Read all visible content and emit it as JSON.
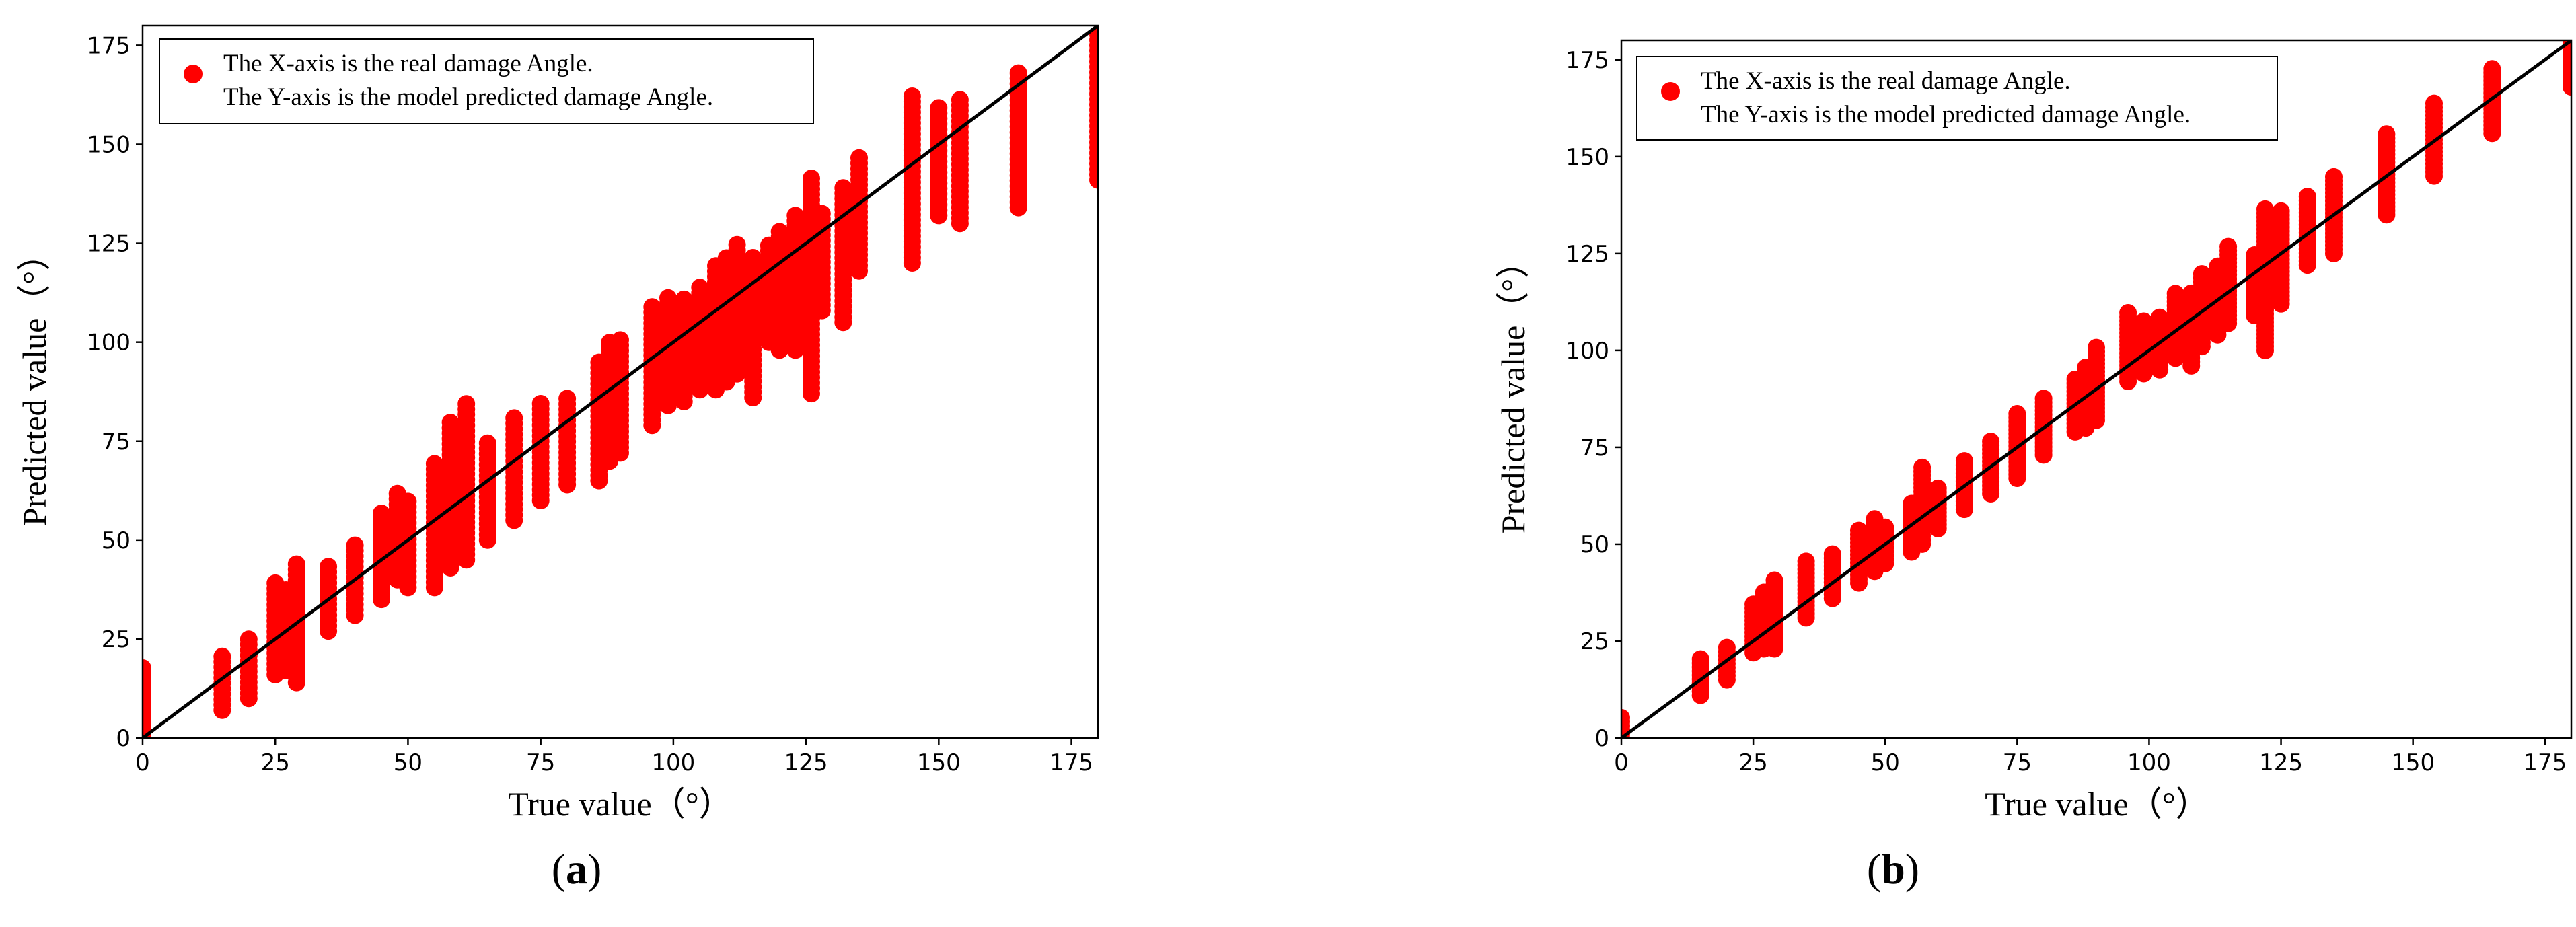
{
  "captions": [
    {
      "open": "(",
      "letter": "a",
      "close": ")"
    },
    {
      "open": "(",
      "letter": "b",
      "close": ")"
    }
  ],
  "colors": {
    "points": "#ff0000",
    "reference_line": "#000000",
    "axes": "#000000"
  },
  "chart_data": [
    {
      "type": "scatter",
      "title": "",
      "xlabel": "True value（°）",
      "ylabel": "Predicted value（°）",
      "xlim": [
        0,
        180
      ],
      "ylim": [
        0,
        180
      ],
      "xticks": [
        0,
        25,
        50,
        75,
        100,
        125,
        150,
        175
      ],
      "yticks": [
        0,
        25,
        50,
        75,
        100,
        125,
        150,
        175
      ],
      "grid": false,
      "legend": {
        "placement": "top-left",
        "marker_color": "#ff0000",
        "lines": [
          "The X-axis is the real damage Angle.",
          "The Y-axis is the model predicted damage Angle."
        ]
      },
      "reference_line": {
        "x": [
          0,
          180
        ],
        "y": [
          0,
          180
        ]
      },
      "series": [
        {
          "point_groups": [
            {
              "x": 0,
              "ymin": 0,
              "ymax": 18
            },
            {
              "x": 15,
              "ymin": 7,
              "ymax": 21
            },
            {
              "x": 20,
              "ymin": 10,
              "ymax": 25
            },
            {
              "x": 25,
              "ymin": 16,
              "ymax": 40
            },
            {
              "x": 27,
              "ymin": 17,
              "ymax": 38
            },
            {
              "x": 29,
              "ymin": 14,
              "ymax": 45
            },
            {
              "x": 35,
              "ymin": 27,
              "ymax": 44
            },
            {
              "x": 40,
              "ymin": 31,
              "ymax": 50
            },
            {
              "x": 45,
              "ymin": 35,
              "ymax": 57
            },
            {
              "x": 48,
              "ymin": 40,
              "ymax": 62
            },
            {
              "x": 50,
              "ymin": 38,
              "ymax": 60
            },
            {
              "x": 55,
              "ymin": 38,
              "ymax": 70
            },
            {
              "x": 58,
              "ymin": 43,
              "ymax": 80
            },
            {
              "x": 61,
              "ymin": 45,
              "ymax": 85
            },
            {
              "x": 65,
              "ymin": 50,
              "ymax": 75
            },
            {
              "x": 70,
              "ymin": 55,
              "ymax": 82
            },
            {
              "x": 75,
              "ymin": 60,
              "ymax": 85
            },
            {
              "x": 80,
              "ymin": 64,
              "ymax": 87
            },
            {
              "x": 86,
              "ymin": 65,
              "ymax": 95
            },
            {
              "x": 88,
              "ymin": 70,
              "ymax": 100
            },
            {
              "x": 90,
              "ymin": 72,
              "ymax": 101
            },
            {
              "x": 96,
              "ymin": 79,
              "ymax": 110
            },
            {
              "x": 99,
              "ymin": 84,
              "ymax": 112
            },
            {
              "x": 102,
              "ymin": 85,
              "ymax": 112
            },
            {
              "x": 105,
              "ymin": 88,
              "ymax": 115
            },
            {
              "x": 108,
              "ymin": 88,
              "ymax": 120
            },
            {
              "x": 110,
              "ymin": 90,
              "ymax": 122
            },
            {
              "x": 112,
              "ymin": 92,
              "ymax": 125
            },
            {
              "x": 115,
              "ymin": 86,
              "ymax": 122
            },
            {
              "x": 118,
              "ymin": 100,
              "ymax": 125
            },
            {
              "x": 120,
              "ymin": 98,
              "ymax": 128
            },
            {
              "x": 123,
              "ymin": 98,
              "ymax": 132
            },
            {
              "x": 126,
              "ymin": 87,
              "ymax": 142
            },
            {
              "x": 128,
              "ymin": 108,
              "ymax": 133
            },
            {
              "x": 132,
              "ymin": 105,
              "ymax": 140
            },
            {
              "x": 135,
              "ymin": 118,
              "ymax": 147
            },
            {
              "x": 145,
              "ymin": 120,
              "ymax": 163
            },
            {
              "x": 150,
              "ymin": 132,
              "ymax": 160
            },
            {
              "x": 154,
              "ymin": 130,
              "ymax": 162
            },
            {
              "x": 165,
              "ymin": 134,
              "ymax": 169
            },
            {
              "x": 180,
              "ymin": 141,
              "ymax": 178
            }
          ]
        }
      ]
    },
    {
      "type": "scatter",
      "title": "",
      "xlabel": "True value（°）",
      "ylabel": "Predicted value（°）",
      "xlim": [
        0,
        180
      ],
      "ylim": [
        0,
        180
      ],
      "xticks": [
        0,
        25,
        50,
        75,
        100,
        125,
        150,
        175
      ],
      "yticks": [
        0,
        25,
        50,
        75,
        100,
        125,
        150,
        175
      ],
      "grid": false,
      "legend": {
        "placement": "top-left",
        "marker_color": "#ff0000",
        "lines": [
          "The X-axis is the real damage Angle.",
          "The Y-axis is the model predicted damage Angle."
        ]
      },
      "reference_line": {
        "x": [
          0,
          180
        ],
        "y": [
          0,
          180
        ]
      },
      "series": [
        {
          "point_groups": [
            {
              "x": 0,
              "ymin": 0,
              "ymax": 6
            },
            {
              "x": 15,
              "ymin": 11,
              "ymax": 21
            },
            {
              "x": 20,
              "ymin": 15,
              "ymax": 24
            },
            {
              "x": 25,
              "ymin": 22,
              "ymax": 35
            },
            {
              "x": 27,
              "ymin": 23,
              "ymax": 38
            },
            {
              "x": 29,
              "ymin": 23,
              "ymax": 41
            },
            {
              "x": 35,
              "ymin": 31,
              "ymax": 46
            },
            {
              "x": 40,
              "ymin": 36,
              "ymax": 48
            },
            {
              "x": 45,
              "ymin": 40,
              "ymax": 54
            },
            {
              "x": 48,
              "ymin": 43,
              "ymax": 57
            },
            {
              "x": 50,
              "ymin": 45,
              "ymax": 55
            },
            {
              "x": 55,
              "ymin": 48,
              "ymax": 61
            },
            {
              "x": 57,
              "ymin": 50,
              "ymax": 70
            },
            {
              "x": 60,
              "ymin": 54,
              "ymax": 65
            },
            {
              "x": 65,
              "ymin": 59,
              "ymax": 72
            },
            {
              "x": 70,
              "ymin": 63,
              "ymax": 77
            },
            {
              "x": 75,
              "ymin": 67,
              "ymax": 84
            },
            {
              "x": 80,
              "ymin": 73,
              "ymax": 88
            },
            {
              "x": 86,
              "ymin": 79,
              "ymax": 93
            },
            {
              "x": 88,
              "ymin": 80,
              "ymax": 96
            },
            {
              "x": 90,
              "ymin": 82,
              "ymax": 101
            },
            {
              "x": 96,
              "ymin": 92,
              "ymax": 110
            },
            {
              "x": 99,
              "ymin": 94,
              "ymax": 108
            },
            {
              "x": 102,
              "ymin": 95,
              "ymax": 109
            },
            {
              "x": 105,
              "ymin": 98,
              "ymax": 115
            },
            {
              "x": 108,
              "ymin": 96,
              "ymax": 115
            },
            {
              "x": 110,
              "ymin": 101,
              "ymax": 120
            },
            {
              "x": 113,
              "ymin": 104,
              "ymax": 122
            },
            {
              "x": 115,
              "ymin": 107,
              "ymax": 127
            },
            {
              "x": 120,
              "ymin": 109,
              "ymax": 125
            },
            {
              "x": 122,
              "ymin": 100,
              "ymax": 137
            },
            {
              "x": 125,
              "ymin": 112,
              "ymax": 136
            },
            {
              "x": 130,
              "ymin": 122,
              "ymax": 140
            },
            {
              "x": 135,
              "ymin": 125,
              "ymax": 145
            },
            {
              "x": 145,
              "ymin": 135,
              "ymax": 156
            },
            {
              "x": 154,
              "ymin": 145,
              "ymax": 164
            },
            {
              "x": 165,
              "ymin": 156,
              "ymax": 173
            },
            {
              "x": 180,
              "ymin": 168,
              "ymax": 180
            }
          ]
        }
      ]
    }
  ]
}
